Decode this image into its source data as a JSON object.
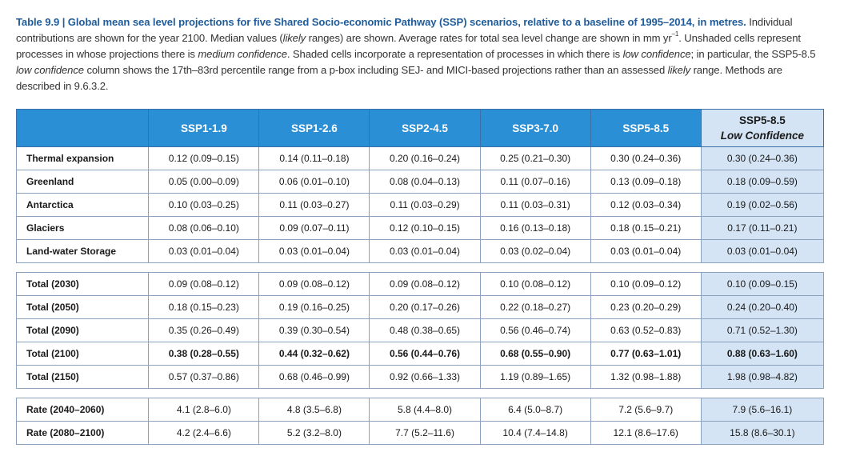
{
  "caption": {
    "title": "Table 9.9 | Global mean sea level projections for five Shared Socio-economic Pathway (SSP) scenarios, relative to a baseline of 1995–2014, in metres.",
    "desc_1": " Individual contributions are shown for the year 2100. Median values (",
    "likely_1": "likely",
    "desc_2": " ranges) are shown. Average rates for total sea level change are shown in mm yr",
    "unit_sup": "–1",
    "desc_3": ". Unshaded cells represent processes in whose projections there is ",
    "medium_conf": "medium confidence",
    "desc_4": ". Shaded cells incorporate a representation of processes in which there is ",
    "low_conf_1": "low confidence",
    "desc_5": "; in particular, the SSP5-8.5 ",
    "low_conf_2": "low confidence",
    "desc_6": " column shows the 17th–83rd percentile range from a p-box including SEJ- and MICI-based projections rather than an assessed ",
    "likely_2": "likely",
    "desc_7": " range. Methods are described in 9.6.3.2."
  },
  "table": {
    "headers": [
      "SSP1-1.9",
      "SSP1-2.6",
      "SSP2-4.5",
      "SSP3-7.0",
      "SSP5-8.5"
    ],
    "lc_header": {
      "line1": "SSP5-8.5",
      "line2": "Low Confidence"
    },
    "groups": [
      [
        {
          "label": "Thermal expansion",
          "cells": [
            "0.12 (0.09–0.15)",
            "0.14 (0.11–0.18)",
            "0.20 (0.16–0.24)",
            "0.25 (0.21–0.30)",
            "0.30 (0.24–0.36)",
            "0.30 (0.24–0.36)"
          ]
        },
        {
          "label": "Greenland",
          "cells": [
            "0.05 (0.00–0.09)",
            "0.06 (0.01–0.10)",
            "0.08 (0.04–0.13)",
            "0.11 (0.07–0.16)",
            "0.13 (0.09–0.18)",
            "0.18 (0.09–0.59)"
          ]
        },
        {
          "label": "Antarctica",
          "cells": [
            "0.10 (0.03–0.25)",
            "0.11 (0.03–0.27)",
            "0.11 (0.03–0.29)",
            "0.11 (0.03–0.31)",
            "0.12 (0.03–0.34)",
            "0.19 (0.02–0.56)"
          ]
        },
        {
          "label": "Glaciers",
          "cells": [
            "0.08 (0.06–0.10)",
            "0.09 (0.07–0.11)",
            "0.12 (0.10–0.15)",
            "0.16 (0.13–0.18)",
            "0.18 (0.15–0.21)",
            "0.17 (0.11–0.21)"
          ]
        },
        {
          "label": "Land-water Storage",
          "cells": [
            "0.03 (0.01–0.04)",
            "0.03 (0.01–0.04)",
            "0.03 (0.01–0.04)",
            "0.03 (0.02–0.04)",
            "0.03 (0.01–0.04)",
            "0.03 (0.01–0.04)"
          ]
        }
      ],
      [
        {
          "label": "Total (2030)",
          "cells": [
            "0.09 (0.08–0.12)",
            "0.09 (0.08–0.12)",
            "0.09 (0.08–0.12)",
            "0.10 (0.08–0.12)",
            "0.10 (0.09–0.12)",
            "0.10 (0.09–0.15)"
          ]
        },
        {
          "label": "Total (2050)",
          "cells": [
            "0.18 (0.15–0.23)",
            "0.19 (0.16–0.25)",
            "0.20 (0.17–0.26)",
            "0.22 (0.18–0.27)",
            "0.23 (0.20–0.29)",
            "0.24 (0.20–0.40)"
          ]
        },
        {
          "label": "Total (2090)",
          "cells": [
            "0.35 (0.26–0.49)",
            "0.39 (0.30–0.54)",
            "0.48 (0.38–0.65)",
            "0.56 (0.46–0.74)",
            "0.63 (0.52–0.83)",
            "0.71 (0.52–1.30)"
          ]
        },
        {
          "label": "Total (2100)",
          "bold": true,
          "cells": [
            "0.38 (0.28–0.55)",
            "0.44 (0.32–0.62)",
            "0.56 (0.44–0.76)",
            "0.68 (0.55–0.90)",
            "0.77 (0.63–1.01)",
            "0.88 (0.63–1.60)"
          ]
        },
        {
          "label": "Total (2150)",
          "cells": [
            "0.57 (0.37–0.86)",
            "0.68 (0.46–0.99)",
            "0.92 (0.66–1.33)",
            "1.19 (0.89–1.65)",
            "1.32 (0.98–1.88)",
            "1.98 (0.98–4.82)"
          ]
        }
      ],
      [
        {
          "label": "Rate (2040–2060)",
          "cells": [
            "4.1 (2.8–6.0)",
            "4.8 (3.5–6.8)",
            "5.8 (4.4–8.0)",
            "6.4 (5.0–8.7)",
            "7.2 (5.6–9.7)",
            "7.9 (5.6–16.1)"
          ]
        },
        {
          "label": "Rate (2080–2100)",
          "cells": [
            "4.2 (2.4–6.6)",
            "5.2 (3.2–8.0)",
            "7.7 (5.2–11.6)",
            "10.4 (7.4–14.8)",
            "12.1 (8.6–17.6)",
            "15.8 (8.6–30.1)"
          ]
        }
      ]
    ]
  }
}
